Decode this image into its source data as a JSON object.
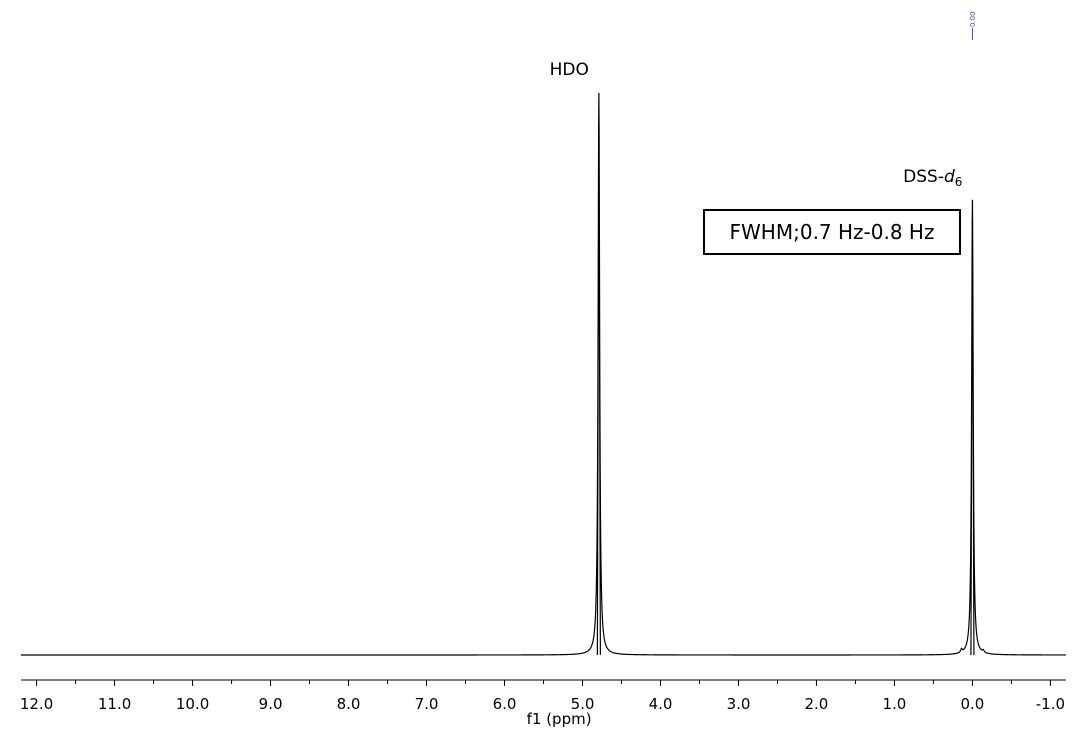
{
  "chart_data": {
    "type": "line",
    "xlabel": "f1 (ppm)",
    "xlim": [
      12.2,
      -1.2
    ],
    "x_reversed": true,
    "x_ticks": [
      12.0,
      11.0,
      10.0,
      9.0,
      8.0,
      7.0,
      6.0,
      5.0,
      4.0,
      3.0,
      2.0,
      1.0,
      0.0,
      -1.0
    ],
    "x_tick_labels": [
      "12.0",
      "11.0",
      "10.0",
      "9.0",
      "8.0",
      "7.0",
      "6.0",
      "5.0",
      "4.0",
      "3.0",
      "2.0",
      "1.0",
      "0.0",
      "-1.0"
    ],
    "x_minor_step": 0.5,
    "ylim": [
      0,
      1.0
    ],
    "peaks": [
      {
        "ppm": 4.79,
        "intensity": 1.0,
        "label": "HDO"
      },
      {
        "ppm": 0.0,
        "intensity": 0.81,
        "label": "DSS-",
        "label_italic": "d",
        "label_subscript": "6"
      },
      {
        "ppm": 0.14,
        "intensity": 0.006,
        "label": ""
      },
      {
        "ppm": -0.14,
        "intensity": 0.004,
        "label": ""
      }
    ],
    "reference_label": "0.00",
    "annotations": [
      "FWHM;0.7 Hz-0.8 Hz"
    ],
    "grid": false,
    "colors": {
      "spectrum": "#000000",
      "reference": "#3a4fb0"
    }
  }
}
